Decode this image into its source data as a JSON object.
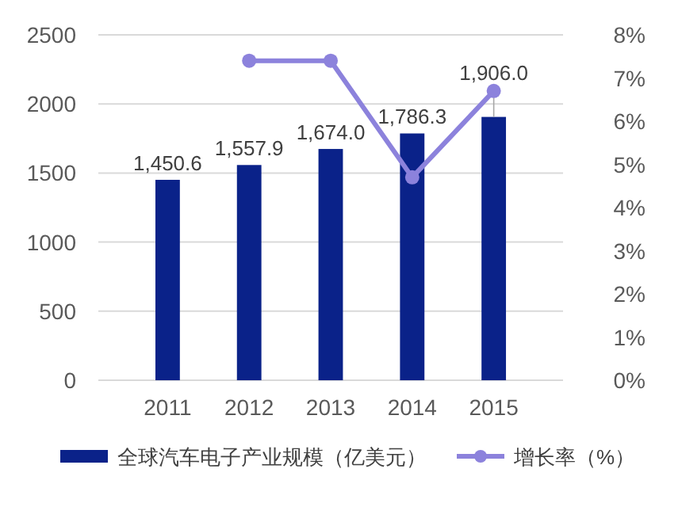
{
  "chart_data": {
    "type": "bar",
    "categories": [
      "2011",
      "2012",
      "2013",
      "2014",
      "2015"
    ],
    "series": [
      {
        "name": "全球汽车电子产业规模（亿美元）",
        "color": "#0a2289",
        "values": [
          1450.6,
          1557.9,
          1674.0,
          1786.3,
          1906.0
        ],
        "value_labels": [
          "1,450.6",
          "1,557.9",
          "1,674.0",
          "1,786.3",
          "1,906.0"
        ]
      },
      {
        "name": "增长率（%）",
        "type": "line",
        "axis": "y2",
        "color": "#8c82dc",
        "marker": "circle",
        "values": [
          null,
          7.4,
          7.4,
          4.7,
          6.7
        ]
      }
    ],
    "ylim": [
      0,
      2500
    ],
    "yticks": [
      0,
      500,
      1000,
      1500,
      2000,
      2500
    ],
    "y2lim": [
      0,
      8
    ],
    "y2ticks": [
      {
        "value": 0,
        "label": "0%"
      },
      {
        "value": 1,
        "label": "1%"
      },
      {
        "value": 2,
        "label": "2%"
      },
      {
        "value": 3,
        "label": "3%"
      },
      {
        "value": 4,
        "label": "4%"
      },
      {
        "value": 5,
        "label": "5%"
      },
      {
        "value": 6,
        "label": "6%"
      },
      {
        "value": 7,
        "label": "7%"
      },
      {
        "value": 8,
        "label": "8%"
      }
    ],
    "grid": "y",
    "legend": "bottom"
  }
}
